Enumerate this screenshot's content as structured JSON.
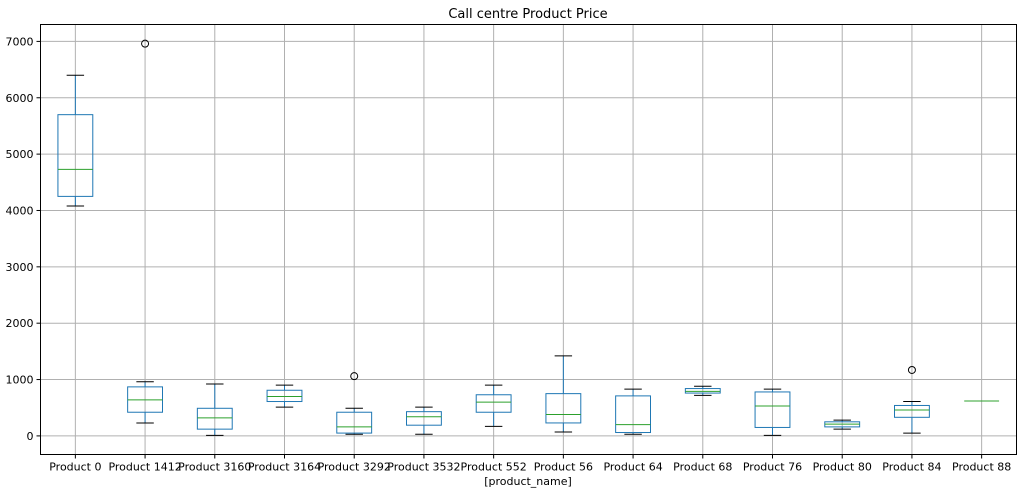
{
  "chart_data": {
    "type": "boxplot",
    "title": "Call centre Product Price",
    "xlabel": "[product_name]",
    "ylabel": "",
    "ylim": [
      -330,
      7300
    ],
    "yticks": [
      0,
      1000,
      2000,
      3000,
      4000,
      5000,
      6000,
      7000
    ],
    "grid": true,
    "colors": {
      "box": "#1f77b4",
      "median": "#2ca02c",
      "whisker": "#1f77b4",
      "cap": "#000000",
      "flier": "#000000",
      "grid": "#b0b0b0"
    },
    "categories": [
      "Product 0",
      "Product 1412",
      "Product 3160",
      "Product 3164",
      "Product 3292",
      "Product 3532",
      "Product 552",
      "Product 56",
      "Product 64",
      "Product 68",
      "Product 76",
      "Product 80",
      "Product 84",
      "Product 88"
    ],
    "boxes": [
      {
        "whislo": 4080,
        "q1": 4250,
        "med": 4730,
        "q3": 5700,
        "whishi": 6400,
        "fliers": []
      },
      {
        "whislo": 230,
        "q1": 420,
        "med": 640,
        "q3": 870,
        "whishi": 960,
        "fliers": [
          6960
        ]
      },
      {
        "whislo": 10,
        "q1": 120,
        "med": 320,
        "q3": 490,
        "whishi": 920,
        "fliers": []
      },
      {
        "whislo": 510,
        "q1": 610,
        "med": 700,
        "q3": 810,
        "whishi": 900,
        "fliers": []
      },
      {
        "whislo": 30,
        "q1": 50,
        "med": 160,
        "q3": 420,
        "whishi": 490,
        "fliers": [
          1060
        ]
      },
      {
        "whislo": 30,
        "q1": 190,
        "med": 340,
        "q3": 430,
        "whishi": 510,
        "fliers": []
      },
      {
        "whislo": 170,
        "q1": 420,
        "med": 600,
        "q3": 730,
        "whishi": 900,
        "fliers": []
      },
      {
        "whislo": 70,
        "q1": 230,
        "med": 380,
        "q3": 750,
        "whishi": 1420,
        "fliers": []
      },
      {
        "whislo": 30,
        "q1": 60,
        "med": 200,
        "q3": 710,
        "whishi": 830,
        "fliers": []
      },
      {
        "whislo": 720,
        "q1": 760,
        "med": 790,
        "q3": 840,
        "whishi": 880,
        "fliers": []
      },
      {
        "whislo": 10,
        "q1": 150,
        "med": 530,
        "q3": 780,
        "whishi": 830,
        "fliers": []
      },
      {
        "whislo": 120,
        "q1": 160,
        "med": 210,
        "q3": 250,
        "whishi": 280,
        "fliers": []
      },
      {
        "whislo": 50,
        "q1": 330,
        "med": 460,
        "q3": 540,
        "whishi": 610,
        "fliers": [
          1170
        ]
      },
      {
        "whislo": 620,
        "q1": 620,
        "med": 620,
        "q3": 620,
        "whishi": 620,
        "fliers": []
      }
    ]
  }
}
